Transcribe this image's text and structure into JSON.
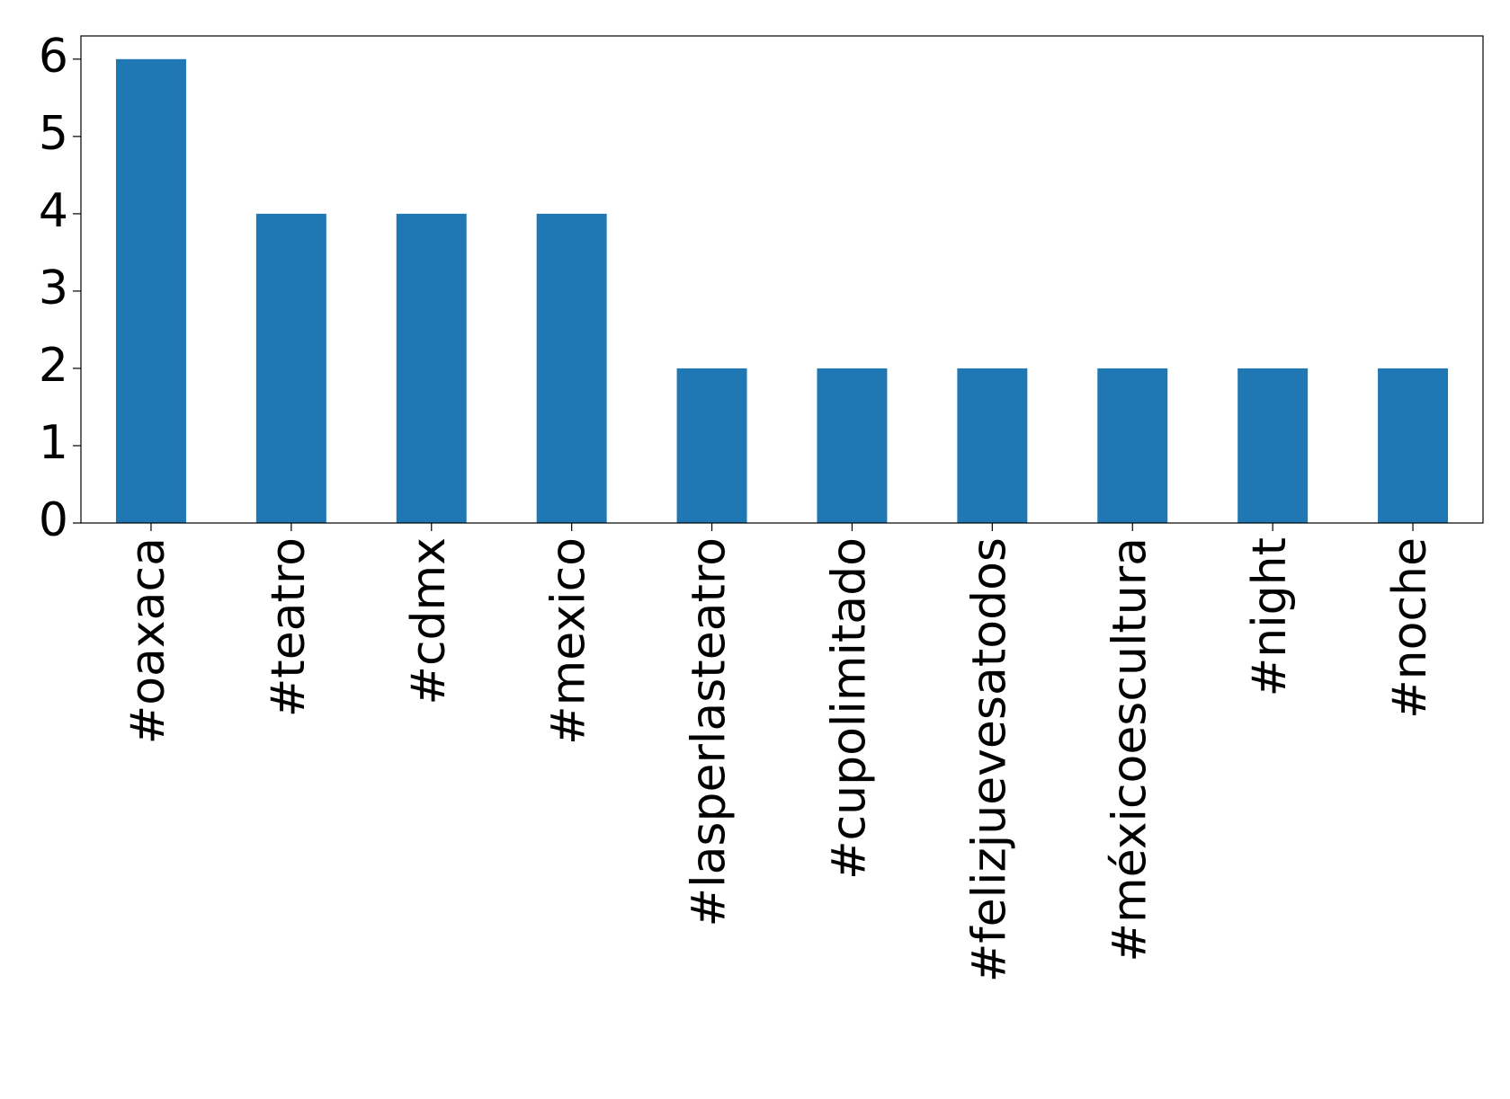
{
  "chart_data": {
    "type": "bar",
    "categories": [
      "#oaxaca",
      "#teatro",
      "#cdmx",
      "#mexico",
      "#lasperlasteatro",
      "#cupolimitado",
      "#felizjuevesatodos",
      "#méxicoescultura",
      "#night",
      "#noche"
    ],
    "values": [
      6,
      4,
      4,
      4,
      2,
      2,
      2,
      2,
      2,
      2
    ],
    "color": "#1f77b4",
    "ylim": [
      0,
      6.3
    ],
    "yticks": [
      0,
      1,
      2,
      3,
      4,
      5,
      6
    ],
    "grid": false
  }
}
